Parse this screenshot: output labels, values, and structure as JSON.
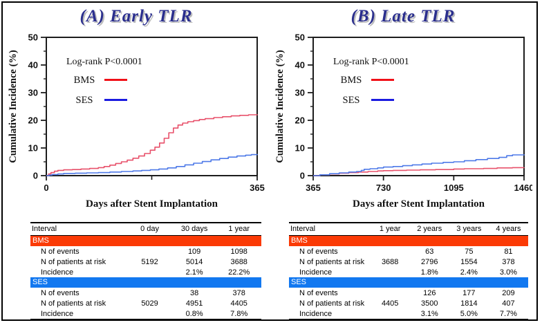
{
  "panels": [
    {
      "title": "(A) Early TLR",
      "table": {
        "header": [
          "Interval",
          "0 day",
          "30 days",
          "1 year"
        ],
        "groups": [
          {
            "name": "BMS",
            "band_color": "#fb3a05",
            "rows": [
              {
                "label": "N of events",
                "values": [
                  "",
                  "109",
                  "1098"
                ]
              },
              {
                "label": "N of patients at risk",
                "values": [
                  "5192",
                  "5014",
                  "3688"
                ]
              },
              {
                "label": "Incidence",
                "values": [
                  "",
                  "2.1%",
                  "22.2%"
                ]
              }
            ]
          },
          {
            "name": "SES",
            "band_color": "#1278f0",
            "rows": [
              {
                "label": "N of events",
                "values": [
                  "",
                  "38",
                  "378"
                ]
              },
              {
                "label": "N of patients at risk",
                "values": [
                  "5029",
                  "4951",
                  "4405"
                ]
              },
              {
                "label": "Incidence",
                "values": [
                  "",
                  "0.8%",
                  "7.8%"
                ]
              }
            ]
          }
        ]
      }
    },
    {
      "title": "(B) Late TLR",
      "table": {
        "header": [
          "Interval",
          "1 year",
          "2 years",
          "3 years",
          "4 years"
        ],
        "groups": [
          {
            "name": "BMS",
            "band_color": "#fb3a05",
            "rows": [
              {
                "label": "N of events",
                "values": [
                  "",
                  "63",
                  "75",
                  "81"
                ]
              },
              {
                "label": "N of patients at risk",
                "values": [
                  "3688",
                  "2796",
                  "1554",
                  "378"
                ]
              },
              {
                "label": "Incidence",
                "values": [
                  "",
                  "1.8%",
                  "2.4%",
                  "3.0%"
                ]
              }
            ]
          },
          {
            "name": "SES",
            "band_color": "#1278f0",
            "rows": [
              {
                "label": "N of events",
                "values": [
                  "",
                  "126",
                  "177",
                  "209"
                ]
              },
              {
                "label": "N of patients at risk",
                "values": [
                  "4405",
                  "3500",
                  "1814",
                  "407"
                ]
              },
              {
                "label": "Incidence",
                "values": [
                  "",
                  "3.1%",
                  "5.0%",
                  "7.7%"
                ]
              }
            ]
          }
        ]
      }
    }
  ],
  "chart_data": [
    {
      "type": "line",
      "title": "(A) Early TLR",
      "annotation": "Log-rank P<0.0001",
      "xlabel": "Days after Stent Implantation",
      "ylabel": "Cumulative Incidence (%)",
      "xlim": [
        0,
        365
      ],
      "ylim": [
        0,
        50
      ],
      "xticks": [
        0,
        365
      ],
      "xtick_labels": [
        "0",
        "365"
      ],
      "xticks_minor": [
        182.5
      ],
      "yticks": [
        0,
        10,
        20,
        30,
        40,
        50
      ],
      "yticks_minor": [
        5,
        15,
        25,
        35,
        45
      ],
      "grid": false,
      "legend_position": "upper-left-inside",
      "series": [
        {
          "name": "BMS",
          "color": "#e8506a",
          "legend_color": "#f01018",
          "x": [
            0,
            4,
            8,
            14,
            20,
            30,
            45,
            60,
            75,
            90,
            100,
            110,
            120,
            130,
            140,
            150,
            160,
            170,
            180,
            188,
            196,
            204,
            212,
            220,
            228,
            236,
            245,
            255,
            265,
            275,
            290,
            305,
            320,
            335,
            350,
            365
          ],
          "y": [
            0,
            0.6,
            1.1,
            1.6,
            1.9,
            2.1,
            2.2,
            2.4,
            2.6,
            2.9,
            3.3,
            3.8,
            4.4,
            5.0,
            5.6,
            6.3,
            7.1,
            8.0,
            9.2,
            10.3,
            11.8,
            13.5,
            15.5,
            17.2,
            18.3,
            19.0,
            19.5,
            19.9,
            20.3,
            20.6,
            21.0,
            21.3,
            21.6,
            21.8,
            22.0,
            22.2
          ]
        },
        {
          "name": "SES",
          "color": "#4d79e8",
          "legend_color": "#1a1ae0",
          "x": [
            0,
            5,
            10,
            20,
            30,
            50,
            70,
            90,
            110,
            130,
            150,
            165,
            180,
            195,
            210,
            225,
            240,
            255,
            270,
            285,
            300,
            315,
            330,
            345,
            355,
            365
          ],
          "y": [
            0,
            0.2,
            0.4,
            0.6,
            0.8,
            0.9,
            1.0,
            1.1,
            1.3,
            1.5,
            1.7,
            1.9,
            2.1,
            2.4,
            2.8,
            3.3,
            3.9,
            4.5,
            5.1,
            5.7,
            6.2,
            6.7,
            7.1,
            7.4,
            7.6,
            7.8
          ]
        }
      ]
    },
    {
      "type": "line",
      "title": "(B) Late TLR",
      "annotation": "Log-rank P<0.0001",
      "xlabel": "Days after Stent Implantation",
      "ylabel": "Cumulative Incidence (%)",
      "xlim": [
        365,
        1460
      ],
      "ylim": [
        0,
        50
      ],
      "xticks": [
        365,
        730,
        1095,
        1460
      ],
      "xtick_labels": [
        "365",
        "730",
        "1095",
        "1460"
      ],
      "xticks_minor": [],
      "yticks": [
        0,
        10,
        20,
        30,
        40,
        50
      ],
      "yticks_minor": [
        5,
        15,
        25,
        35,
        45
      ],
      "grid": false,
      "legend_position": "upper-left-inside",
      "series": [
        {
          "name": "BMS",
          "color": "#e8506a",
          "legend_color": "#f01018",
          "x": [
            365,
            400,
            450,
            500,
            550,
            600,
            650,
            700,
            730,
            780,
            850,
            920,
            1000,
            1095,
            1150,
            1250,
            1320,
            1400,
            1460
          ],
          "y": [
            0,
            0.3,
            0.6,
            0.9,
            1.1,
            1.3,
            1.5,
            1.7,
            1.8,
            1.9,
            2.0,
            2.1,
            2.2,
            2.4,
            2.5,
            2.6,
            2.8,
            2.9,
            3.0
          ]
        },
        {
          "name": "SES",
          "color": "#4d79e8",
          "legend_color": "#1a1ae0",
          "x": [
            365,
            400,
            450,
            500,
            550,
            590,
            615,
            630,
            660,
            700,
            730,
            780,
            830,
            880,
            930,
            980,
            1040,
            1095,
            1150,
            1210,
            1270,
            1330,
            1370,
            1400,
            1460
          ],
          "y": [
            0,
            0.3,
            0.7,
            1.0,
            1.3,
            1.5,
            1.9,
            2.3,
            2.5,
            2.8,
            3.1,
            3.3,
            3.6,
            3.9,
            4.2,
            4.5,
            4.8,
            5.0,
            5.4,
            5.8,
            6.2,
            6.6,
            7.2,
            7.5,
            7.7
          ]
        }
      ]
    }
  ]
}
